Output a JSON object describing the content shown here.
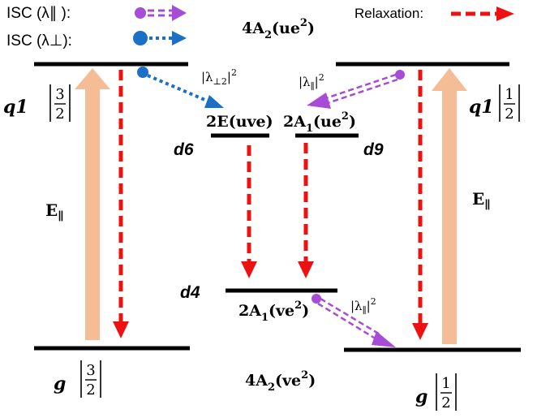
{
  "legend": {
    "isc_par_label": "ISC (λ∥ ):",
    "isc_perp_label": "ISC (λ⊥):",
    "relaxation_label": "Relaxation:",
    "colors": {
      "isc_par": "#a64cd6",
      "isc_perp": "#1b6fc4",
      "relaxation": "#ee1111"
    }
  },
  "top_level": {
    "label": "4A",
    "sub": "2",
    "config": "(ue",
    "sup": "2",
    "close": ")"
  },
  "bottom_level": {
    "label": "4A",
    "sub": "2",
    "config": "(ve",
    "sup": "2",
    "close": ")"
  },
  "left_states": {
    "upper_prefix": "q1",
    "upper_frac_num": "3",
    "upper_frac_den": "2",
    "lower_prefix": "g",
    "lower_frac_num": "3",
    "lower_frac_den": "2",
    "excitation_label": "E",
    "excitation_sub": "∥"
  },
  "right_states": {
    "upper_prefix": "q1",
    "upper_frac_num": "1",
    "upper_frac_den": "2",
    "lower_prefix": "g",
    "lower_frac_num": "1",
    "lower_frac_den": "2",
    "excitation_label": "E",
    "excitation_sub": "∥"
  },
  "middle_states": {
    "e_level": "2E(uve)",
    "a1_upper": {
      "label": "2A",
      "sub": "1",
      "config": "(ue",
      "sup": "2",
      "close": ")"
    },
    "a1_lower": {
      "label": "2A",
      "sub": "1",
      "config": "(ve",
      "sup": "2",
      "close": ")"
    },
    "d6": "d6",
    "d9": "d9",
    "d4": "d4"
  },
  "rates": {
    "perp_2": {
      "open": "|λ",
      "sub": "⊥2",
      "close": "|",
      "sup": "2"
    },
    "par_upper": {
      "open": "|λ",
      "sub": "∥",
      "close": "|",
      "sup": "2"
    },
    "par_lower": {
      "open": "|λ",
      "sub": "∥",
      "close": "|",
      "sup": "2"
    }
  }
}
